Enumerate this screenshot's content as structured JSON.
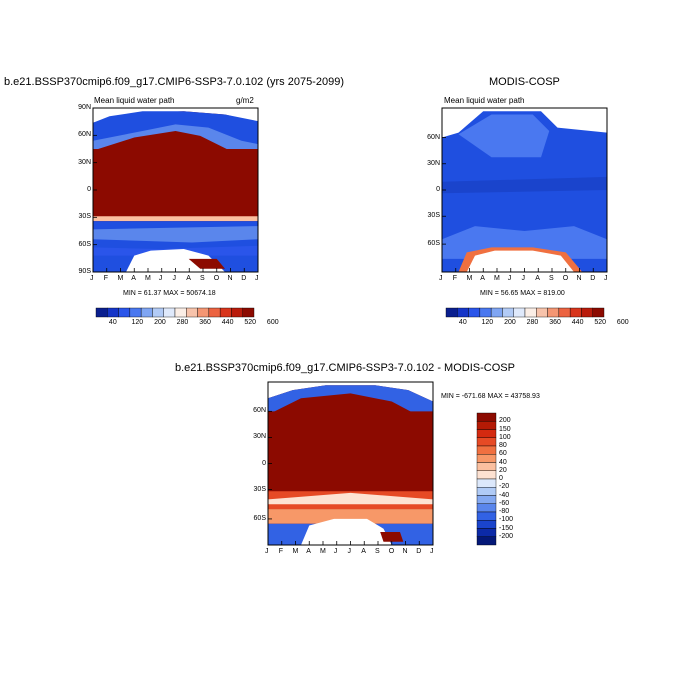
{
  "chart_data": [
    {
      "type": "heatmap",
      "title": "b.e21.BSSP370cmip6.f09_g17.CMIP6-SSP3-7.0.102 (yrs 2075-2099)",
      "subtitle": "Mean liquid water path",
      "units": "g/m2",
      "xlabels": [
        "J",
        "F",
        "M",
        "A",
        "M",
        "J",
        "J",
        "A",
        "S",
        "O",
        "N",
        "D",
        "J"
      ],
      "ylabels": [
        "90N",
        "60N",
        "30N",
        "0",
        "30S",
        "60S",
        "90S"
      ],
      "stats": "MIN =  61.37 MAX = 50674.18",
      "colorbar_labels": [
        "40",
        "120",
        "200",
        "280",
        "360",
        "440",
        "520",
        "600"
      ],
      "colorbar_colors": [
        "#0a1f8f",
        "#1535c8",
        "#2a55ea",
        "#4a78f0",
        "#7fa5f3",
        "#b2cbf6",
        "#dfe9fb",
        "#fbeee6",
        "#f7c3ab",
        "#f49673",
        "#ec6341",
        "#d8351c",
        "#b91b0b",
        "#8c0a00"
      ],
      "background_color": "#8c0a00"
    },
    {
      "type": "heatmap",
      "title": "MODIS-COSP",
      "subtitle": "Mean liquid water path",
      "xlabels": [
        "J",
        "F",
        "M",
        "A",
        "M",
        "J",
        "J",
        "A",
        "S",
        "O",
        "N",
        "D",
        "J"
      ],
      "ylabels": [
        "60N",
        "30N",
        "0",
        "30S",
        "60S"
      ],
      "stats": "MIN =  56.65 MAX = 819.00",
      "colorbar_labels": [
        "40",
        "120",
        "200",
        "280",
        "360",
        "440",
        "520",
        "600"
      ],
      "colorbar_colors": [
        "#0a1f8f",
        "#1535c8",
        "#2a55ea",
        "#4a78f0",
        "#7fa5f3",
        "#b2cbf6",
        "#dfe9fb",
        "#fbeee6",
        "#f7c3ab",
        "#f49673",
        "#ec6341",
        "#d8351c",
        "#b91b0b",
        "#8c0a00"
      ],
      "background_color": "#1f4fe0"
    },
    {
      "type": "heatmap",
      "title": "b.e21.BSSP370cmip6.f09_g17.CMIP6-SSP3-7.0.102 - MODIS-COSP",
      "xlabels": [
        "J",
        "F",
        "M",
        "A",
        "M",
        "J",
        "J",
        "A",
        "S",
        "O",
        "N",
        "D",
        "J"
      ],
      "ylabels": [
        "60N",
        "30N",
        "0",
        "30S",
        "60S"
      ],
      "stats": "MIN = -671.68 MAX = 43758.93",
      "colorbar_labels": [
        "200",
        "150",
        "100",
        "80",
        "60",
        "40",
        "20",
        "0",
        "-20",
        "-40",
        "-60",
        "-80",
        "-100",
        "-150",
        "-200"
      ],
      "colorbar_colors": [
        "#8c0a00",
        "#b41a05",
        "#d42a10",
        "#e64a25",
        "#f07040",
        "#f79868",
        "#fbc0a0",
        "#fde2d2",
        "#dce8fb",
        "#b0cbf6",
        "#84a9f1",
        "#5a86ec",
        "#3262e4",
        "#1a44cc",
        "#0c2aa8",
        "#041878"
      ],
      "background_color": "#8c0a00"
    }
  ]
}
